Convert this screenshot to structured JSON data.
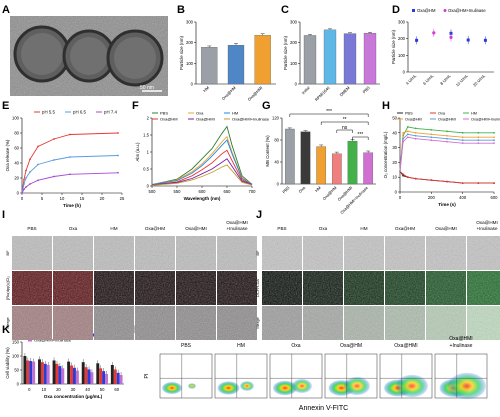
{
  "panel_letters": [
    "A",
    "B",
    "C",
    "D",
    "E",
    "F",
    "G",
    "H",
    "I",
    "J",
    "K",
    "L"
  ],
  "panelA": {
    "scale_bar": "50 nm"
  },
  "chart_data": [
    {
      "panel": "B",
      "type": "bar",
      "categories": [
        "HM",
        "Oxa@HM",
        "Oxa@HMI"
      ],
      "values": [
        178,
        188,
        236
      ],
      "errors": [
        6,
        8,
        7
      ],
      "colors": [
        "#9aa0a6",
        "#4f86c6",
        "#f0a030"
      ],
      "ylabel": "Particle size (nm)",
      "ylim": [
        0,
        300
      ],
      "yticks": [
        0,
        100,
        200,
        300
      ]
    },
    {
      "panel": "C",
      "type": "bar",
      "categories": [
        "Initial",
        "RPMI1640",
        "DMEM",
        "PBS"
      ],
      "values": [
        235,
        262,
        244,
        246
      ],
      "errors": [
        5,
        5,
        4,
        4
      ],
      "colors": [
        "#9aa0a6",
        "#5fb7e6",
        "#7a7ad6",
        "#c878d8"
      ],
      "ylabel": "Particle size (nm)",
      "ylim": [
        0,
        300
      ],
      "yticks": [
        0,
        100,
        200,
        300
      ]
    },
    {
      "panel": "D",
      "type": "scatter",
      "legend": [
        "Oxa@HM",
        "Oxa@HM+Inulinase"
      ],
      "categories": [
        "4 U/mL",
        "6 U/mL",
        "8 U/mL",
        "10 U/mL",
        "20 U/mL"
      ],
      "series": [
        {
          "name": "Oxa@HM",
          "values": [
            190,
            null,
            232,
            192,
            190
          ],
          "color": "#2a3bd6"
        },
        {
          "name": "Oxa@HM+Inulinase",
          "values": [
            null,
            235,
            208,
            null,
            null
          ],
          "color": "#d63ad6"
        }
      ],
      "ylabel": "Particle size (nm)",
      "ylim": [
        0,
        300
      ],
      "yticks": [
        0,
        100,
        200,
        300
      ]
    },
    {
      "panel": "E",
      "type": "line",
      "legend": [
        "pH 5.5",
        "pH 6.5",
        "pH 7.4"
      ],
      "x": [
        0,
        0.5,
        1,
        2,
        4,
        8,
        12,
        24
      ],
      "series": [
        {
          "name": "pH 5.5",
          "values": [
            0,
            18,
            30,
            45,
            62,
            72,
            78,
            80
          ],
          "color": "#e53935"
        },
        {
          "name": "pH 6.5",
          "values": [
            0,
            12,
            20,
            28,
            38,
            44,
            48,
            50
          ],
          "color": "#5b9be0"
        },
        {
          "name": "pH 7.4",
          "values": [
            0,
            5,
            8,
            12,
            17,
            22,
            25,
            27
          ],
          "color": "#a64ad6"
        }
      ],
      "xlabel": "Time (h)",
      "ylabel": "Oxa release (%)",
      "xlim": [
        0,
        25
      ],
      "xticks": [
        0,
        5,
        10,
        15,
        20,
        25
      ],
      "ylim": [
        0,
        100
      ],
      "yticks": [
        0,
        20,
        40,
        60,
        80,
        100
      ]
    },
    {
      "panel": "F",
      "type": "line",
      "legend": [
        "PBS",
        "Oxa",
        "HM",
        "Oxa@HM",
        "Oxa@HMI",
        "Oxa@HMI+Inulinase"
      ],
      "x": [
        500,
        550,
        580,
        600,
        620,
        640,
        650,
        660,
        680,
        700
      ],
      "series": [
        {
          "name": "PBS",
          "values": [
            0.04,
            0.2,
            0.5,
            0.8,
            1.1,
            1.55,
            1.75,
            1.2,
            0.3,
            0.05
          ],
          "color": "#2e7d32"
        },
        {
          "name": "Oxa",
          "values": [
            0.04,
            0.18,
            0.42,
            0.65,
            0.95,
            1.3,
            1.45,
            1.0,
            0.25,
            0.05
          ],
          "color": "#f0a030"
        },
        {
          "name": "HM",
          "values": [
            0.04,
            0.16,
            0.38,
            0.6,
            0.88,
            1.2,
            1.35,
            0.95,
            0.22,
            0.05
          ],
          "color": "#1e88e5"
        },
        {
          "name": "Oxa@HM",
          "values": [
            0.03,
            0.12,
            0.3,
            0.48,
            0.68,
            0.95,
            1.05,
            0.75,
            0.18,
            0.04
          ],
          "color": "#e53935"
        },
        {
          "name": "Oxa@HMI",
          "values": [
            0.03,
            0.1,
            0.22,
            0.36,
            0.5,
            0.7,
            0.8,
            0.58,
            0.14,
            0.04
          ],
          "color": "#7b1fa2"
        },
        {
          "name": "Oxa@HMI+Inulinase",
          "values": [
            0.02,
            0.08,
            0.18,
            0.28,
            0.4,
            0.56,
            0.62,
            0.45,
            0.11,
            0.03
          ],
          "color": "#c0a030"
        }
      ],
      "xlabel": "Wavelength (nm)",
      "ylabel": "Abs (a.u.)",
      "xlim": [
        500,
        700
      ],
      "xticks": [
        500,
        550,
        600,
        650,
        700
      ],
      "ylim": [
        0,
        2.0
      ],
      "yticks": [
        0.0,
        0.5,
        1.0,
        1.5,
        2.0
      ]
    },
    {
      "panel": "G",
      "type": "bar",
      "categories": [
        "PBS",
        "Oxa",
        "HM",
        "Oxa@HM",
        "Oxa@HMI",
        "Oxa@HMI+Inulinase"
      ],
      "values": [
        100,
        95,
        68,
        55,
        78,
        57
      ],
      "errors": [
        2,
        2,
        3,
        3,
        3,
        3
      ],
      "colors": [
        "#9aa0a6",
        "#3a3a3a",
        "#f0a030",
        "#f08080",
        "#43b04a",
        "#d070d0"
      ],
      "ylabel": "MB Content (%)",
      "ylim": [
        0,
        120
      ],
      "yticks": [
        0,
        40,
        80,
        120
      ],
      "significance": [
        "***",
        "**",
        "ns",
        "***"
      ]
    },
    {
      "panel": "H",
      "type": "line",
      "legend": [
        "PBS",
        "Oxa",
        "HM",
        "Oxa@HM",
        "Oxa@HMI",
        "Oxa@HMI+Inulinase"
      ],
      "x": [
        0,
        20,
        50,
        100,
        200,
        300,
        400,
        500,
        600
      ],
      "series": [
        {
          "name": "PBS",
          "values": [
            14,
            11,
            10,
            9,
            8,
            7,
            6,
            6,
            6
          ],
          "color": "#222222"
        },
        {
          "name": "Oxa",
          "values": [
            14,
            12,
            10,
            9,
            8,
            7,
            6,
            6,
            6
          ],
          "color": "#e53935"
        },
        {
          "name": "HM",
          "values": [
            14,
            38,
            44,
            43,
            42,
            41,
            40,
            40,
            40
          ],
          "color": "#43b04a"
        },
        {
          "name": "Oxa@HM",
          "values": [
            14,
            40,
            41,
            40,
            39,
            38,
            37,
            37,
            37
          ],
          "color": "#f0a030"
        },
        {
          "name": "Oxa@HMI",
          "values": [
            14,
            36,
            39,
            38,
            37,
            36,
            35,
            35,
            35
          ],
          "color": "#5b9be0"
        },
        {
          "name": "Oxa@HMI+Inulinase",
          "values": [
            14,
            34,
            37,
            36,
            35,
            34,
            33,
            33,
            33
          ],
          "color": "#d070d0"
        }
      ],
      "xlabel": "Time (s)",
      "ylabel": "O₂ concentration (mg/L)",
      "xlim": [
        0,
        600
      ],
      "xticks": [
        0,
        200,
        400,
        600
      ],
      "ylim": [
        0,
        50
      ],
      "yticks": [
        0,
        10,
        20,
        30,
        40,
        50
      ]
    },
    {
      "panel": "K",
      "type": "bar",
      "legend": [
        "Oxa",
        "Oxa@HM",
        "Oxa@HMI",
        "Oxa@HMI+Inulinase"
      ],
      "categories": [
        "0",
        "10",
        "20",
        "30",
        "40",
        "50",
        "60"
      ],
      "series": [
        {
          "name": "Oxa",
          "values": [
            100,
            88,
            84,
            80,
            78,
            74,
            68
          ],
          "color": "#222222"
        },
        {
          "name": "Oxa@HM",
          "values": [
            84,
            78,
            72,
            66,
            60,
            56,
            52
          ],
          "color": "#e53935"
        },
        {
          "name": "Oxa@HMI",
          "values": [
            82,
            72,
            64,
            58,
            52,
            46,
            40
          ],
          "color": "#2a3bd6"
        },
        {
          "name": "Oxa@HMI+Inulinase",
          "values": [
            80,
            68,
            56,
            48,
            42,
            36,
            32
          ],
          "color": "#c070d0"
        }
      ],
      "xlabel": "Oxa concentration (μg/mL)",
      "ylabel": "Cell viability (%)",
      "ylim": [
        0,
        150
      ],
      "yticks": [
        0,
        50,
        100,
        150
      ]
    }
  ],
  "panelI": {
    "columns": [
      "PBS",
      "Oxa",
      "HM",
      "Oxa@HM",
      "Oxa@HMI",
      "Oxa@HMI +Inulinase"
    ],
    "rows": [
      "BF",
      "[Ru(dpp)₃]Cl₂",
      "Merge"
    ]
  },
  "panelJ": {
    "columns": [
      "PBS",
      "Oxa",
      "HM",
      "Oxa@HM",
      "Oxa@HMI",
      "Oxa@HMI +Inulinase"
    ],
    "rows": [
      "BF",
      "DCFH-DA",
      "Merge"
    ]
  },
  "panelL": {
    "columns": [
      "PBS",
      "HM",
      "Oxa",
      "Oxa@HM",
      "Oxa@HMI",
      "Oxa@HMI +Inulinase"
    ],
    "ylabel": "PI",
    "xlabel": "Annexin V-FITC"
  }
}
